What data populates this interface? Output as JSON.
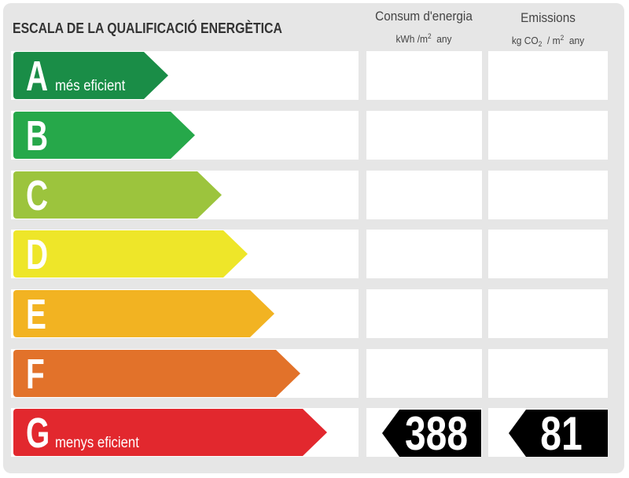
{
  "title": "ESCALA DE LA QUALIFICACIÓ ENERGÈTICA",
  "columns": {
    "consum": {
      "title": "Consum d'energia",
      "unit_a": "kWh /m",
      "unit_sup": "2",
      "unit_b": "any"
    },
    "emissions": {
      "title": "Emissions",
      "unit_a": "kg CO",
      "unit_sub": "2",
      "unit_c": "/ m",
      "unit_sup": "2",
      "unit_b": "any"
    }
  },
  "classes": [
    {
      "letter": "A",
      "label": "més eficient",
      "color": "#1a8d47"
    },
    {
      "letter": "B",
      "label": "",
      "color": "#26a84a"
    },
    {
      "letter": "C",
      "label": "",
      "color": "#9cc43d"
    },
    {
      "letter": "D",
      "label": "",
      "color": "#eee629"
    },
    {
      "letter": "E",
      "label": "",
      "color": "#f2b322"
    },
    {
      "letter": "F",
      "label": "",
      "color": "#e2722a"
    },
    {
      "letter": "G",
      "label": "menys eficient",
      "color": "#e2282e"
    }
  ],
  "rating": {
    "class": "G",
    "consum_value": "388",
    "emissions_value": "81",
    "badge_color": "#000000"
  }
}
